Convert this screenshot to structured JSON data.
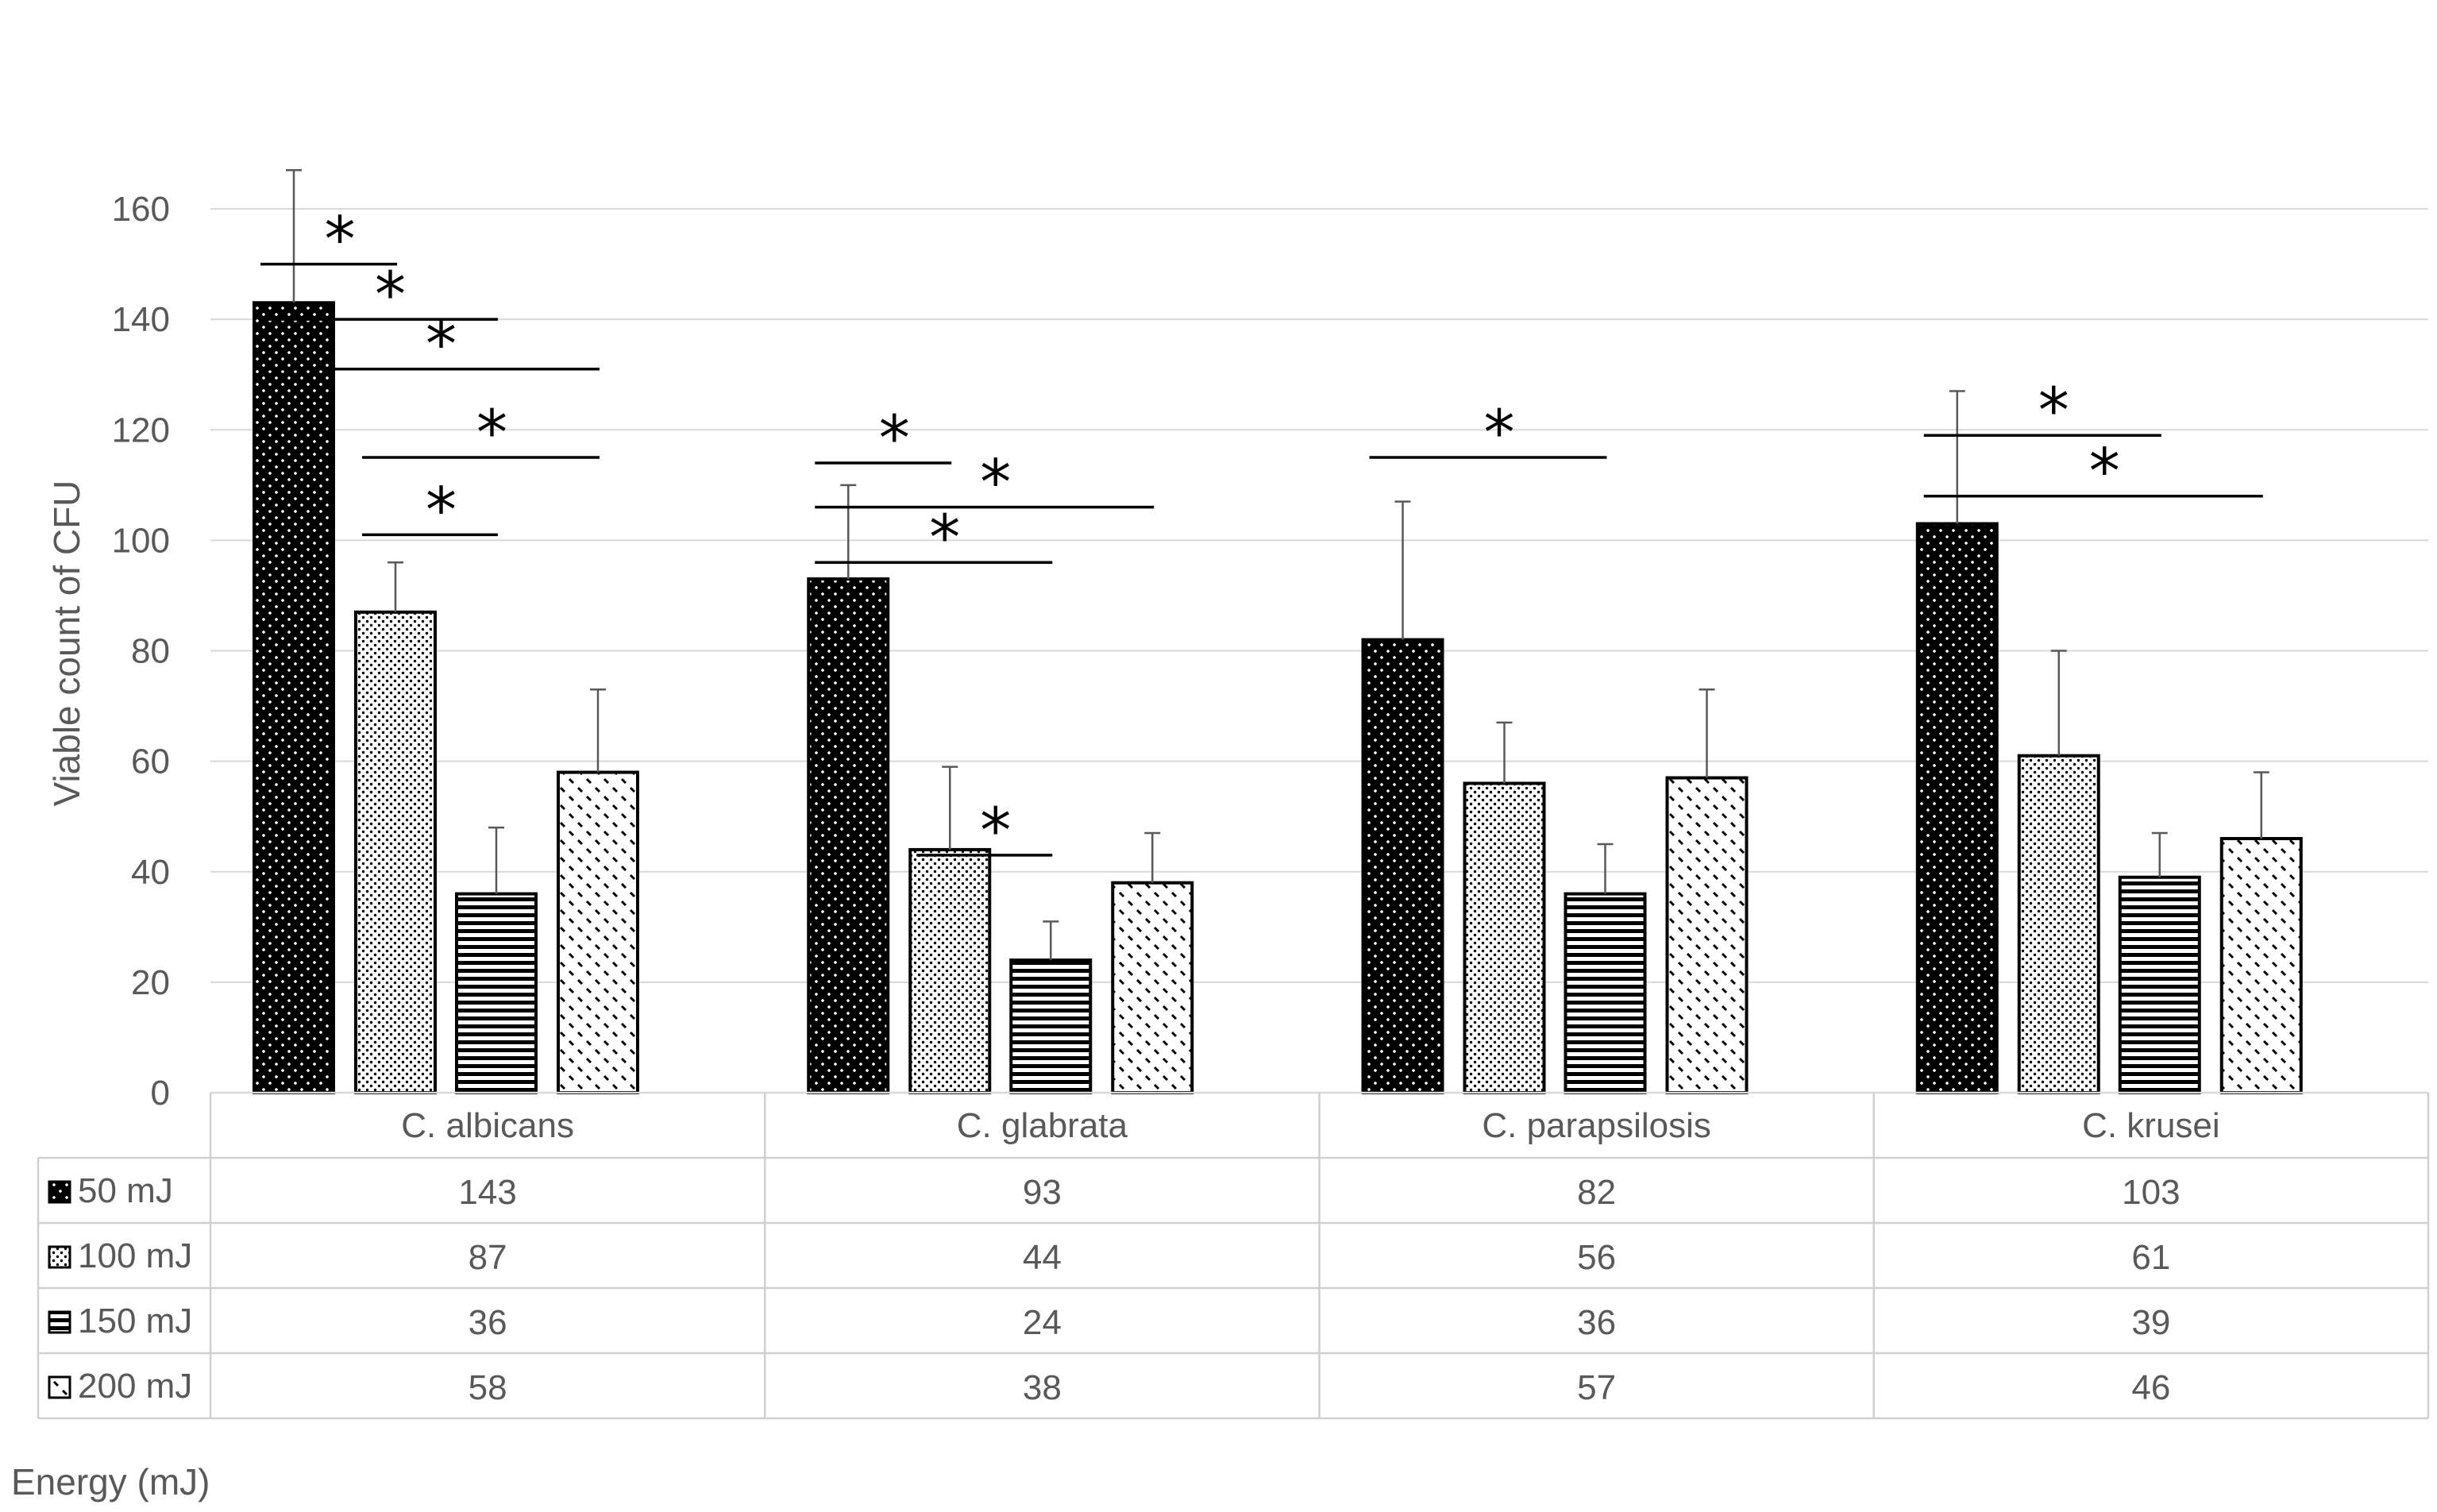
{
  "chart_data": {
    "type": "bar",
    "title": "",
    "xlabel": "Energy (mJ)",
    "ylabel": "Viable count of  CFU",
    "ylim": [
      0,
      160
    ],
    "yticks": [
      0,
      20,
      40,
      60,
      80,
      100,
      120,
      140,
      160
    ],
    "categories": [
      "C. albicans",
      "C. glabrata",
      "C. parapsilosis",
      "C. krusei"
    ],
    "series": [
      {
        "name": "50 mJ",
        "pattern": "dense-dots-on-black",
        "values": [
          143,
          93,
          82,
          103
        ],
        "error": [
          24,
          17,
          25,
          24
        ]
      },
      {
        "name": "100 mJ",
        "pattern": "fine-dots-on-white",
        "values": [
          87,
          44,
          56,
          61
        ],
        "error": [
          9,
          15,
          11,
          19
        ]
      },
      {
        "name": "150 mJ",
        "pattern": "horizontal-stripes",
        "values": [
          36,
          24,
          36,
          39
        ],
        "error": [
          12,
          7,
          9,
          8
        ]
      },
      {
        "name": "200 mJ",
        "pattern": "diagonal-dashes",
        "values": [
          58,
          38,
          57,
          46
        ],
        "error": [
          15,
          9,
          16,
          12
        ]
      }
    ],
    "significance": [
      {
        "category": "C. albicans",
        "from": 0,
        "to": 1,
        "level": 150,
        "label": "*"
      },
      {
        "category": "C. albicans",
        "from": 0,
        "to": 2,
        "level": 140,
        "label": "*"
      },
      {
        "category": "C. albicans",
        "from": 0,
        "to": 3,
        "level": 131,
        "label": "*"
      },
      {
        "category": "C. albicans",
        "from": 1,
        "to": 3,
        "level": 115,
        "label": "*"
      },
      {
        "category": "C. albicans",
        "from": 1,
        "to": 2,
        "level": 101,
        "label": "*"
      },
      {
        "category": "C. glabrata",
        "from": 0,
        "to": 1,
        "level": 114,
        "label": "*"
      },
      {
        "category": "C. glabrata",
        "from": 0,
        "to": 3,
        "level": 106,
        "label": "*"
      },
      {
        "category": "C. glabrata",
        "from": 0,
        "to": 2,
        "level": 96,
        "label": "*"
      },
      {
        "category": "C. glabrata",
        "from": 1,
        "to": 2,
        "level": 43,
        "label": "*"
      },
      {
        "category": "C. parapsilosis",
        "from": 0,
        "to": 2,
        "level": 115,
        "label": "*"
      },
      {
        "category": "C. krusei",
        "from": 0,
        "to": 2,
        "level": 119,
        "label": "*"
      },
      {
        "category": "C. krusei",
        "from": 0,
        "to": 3,
        "level": 108,
        "label": "*"
      }
    ],
    "grid": true,
    "legend": "data-table-left"
  }
}
